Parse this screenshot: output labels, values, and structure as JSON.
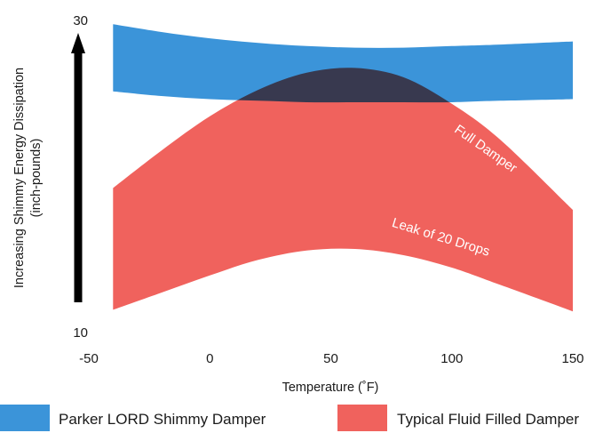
{
  "chart_data": {
    "type": "area",
    "xlabel": "Temperature (˚F)",
    "ylabel_line1": "Increasing Shimmy Energy Dissipation",
    "ylabel_line2": "(inch-pounds)",
    "xlim": [
      -50,
      150
    ],
    "ylim": [
      10,
      30
    ],
    "x_ticks": [
      "-50",
      "0",
      "50",
      "100",
      "150"
    ],
    "y_ticks": [
      "30",
      "10"
    ],
    "grid": false,
    "legend_position": "bottom",
    "series": [
      {
        "name": "Parker LORD Shimmy Damper",
        "color": "#3b94d9",
        "x": [
          -40,
          -20,
          0,
          20,
          40,
          60,
          80,
          100,
          120,
          150
        ],
        "upper": [
          29.7,
          29.2,
          28.8,
          28.5,
          28.3,
          28.2,
          28.2,
          28.3,
          28.4,
          28.6
        ],
        "lower": [
          25.4,
          25.1,
          24.9,
          24.8,
          24.7,
          24.7,
          24.7,
          24.7,
          24.8,
          24.9
        ]
      },
      {
        "name": "Typical Fluid Filled Damper",
        "color": "#f0625d",
        "x": [
          -40,
          -20,
          0,
          20,
          40,
          60,
          80,
          100,
          120,
          150
        ],
        "upper": [
          19.2,
          21.6,
          23.8,
          25.5,
          26.6,
          26.9,
          26.3,
          24.6,
          22.3,
          17.8
        ],
        "lower": [
          11.4,
          12.5,
          13.6,
          14.6,
          15.2,
          15.3,
          14.9,
          14.1,
          13.0,
          11.3
        ]
      }
    ],
    "annotations": [
      {
        "text": "Full Damper",
        "x": 113,
        "y": 21.5
      },
      {
        "text": "Leak of 20 Drops",
        "x": 95,
        "y": 15.8
      }
    ]
  }
}
